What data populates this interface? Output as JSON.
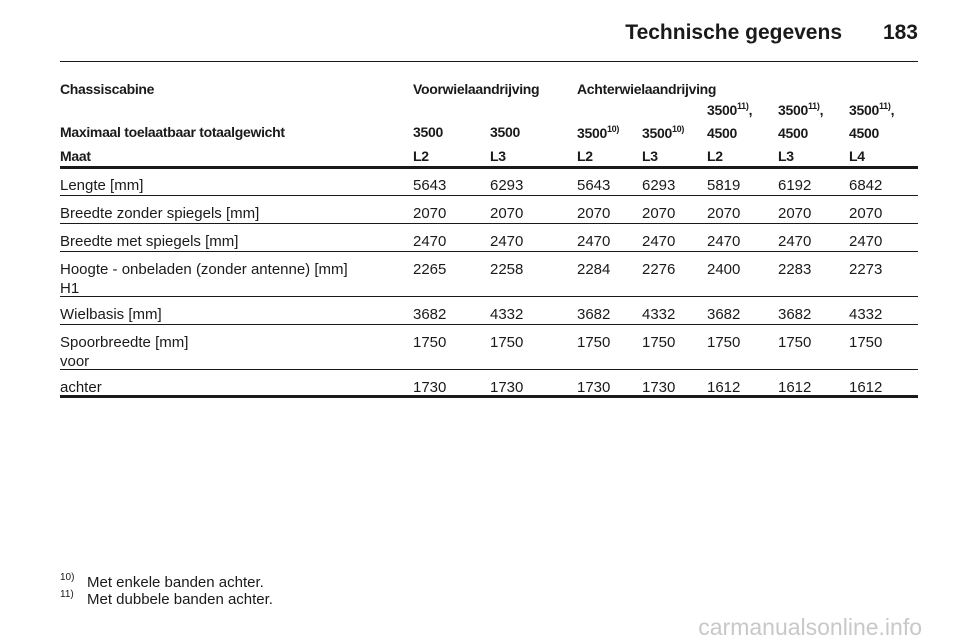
{
  "header": {
    "title": "Technische gegevens",
    "page_number": "183"
  },
  "table": {
    "group_headers": [
      "Chassiscabine",
      "Voorwielaandrijving",
      "Achterwielaandrijving"
    ],
    "weight_label": "Maximaal toelaatbaar totaalgewicht",
    "weights": [
      {
        "text": "3500"
      },
      {
        "text": "3500"
      },
      {
        "text": "3500",
        "note": "10)"
      },
      {
        "text": "3500",
        "note": "10)"
      },
      {
        "text": "3500",
        "note": "11)",
        "suffix": ",",
        "line2": "4500"
      },
      {
        "text": "3500",
        "note": "11)",
        "suffix": ",",
        "line2": "4500"
      },
      {
        "text": "3500",
        "note": "11)",
        "suffix": ",",
        "line2": "4500"
      }
    ],
    "size_label": "Maat",
    "sizes": [
      "L2",
      "L3",
      "L2",
      "L3",
      "L2",
      "L3",
      "L4"
    ],
    "rows": [
      {
        "label": [
          "Lengte [mm]"
        ],
        "values": [
          "5643",
          "6293",
          "5643",
          "6293",
          "5819",
          "6192",
          "6842"
        ]
      },
      {
        "label": [
          "Breedte zonder spiegels [mm]"
        ],
        "values": [
          "2070",
          "2070",
          "2070",
          "2070",
          "2070",
          "2070",
          "2070"
        ]
      },
      {
        "label": [
          "Breedte met spiegels [mm]"
        ],
        "values": [
          "2470",
          "2470",
          "2470",
          "2470",
          "2470",
          "2470",
          "2470"
        ]
      },
      {
        "label": [
          "Hoogte - onbeladen (zonder antenne) [mm]",
          "H1"
        ],
        "values": [
          "2265",
          "2258",
          "2284",
          "2276",
          "2400",
          "2283",
          "2273"
        ]
      },
      {
        "label": [
          "Wielbasis [mm]"
        ],
        "values": [
          "3682",
          "4332",
          "3682",
          "4332",
          "3682",
          "3682",
          "4332"
        ]
      },
      {
        "label": [
          "Spoorbreedte [mm]",
          "voor"
        ],
        "values": [
          "1750",
          "1750",
          "1750",
          "1750",
          "1750",
          "1750",
          "1750"
        ]
      },
      {
        "label": [
          "achter"
        ],
        "values": [
          "1730",
          "1730",
          "1730",
          "1730",
          "1612",
          "1612",
          "1612"
        ]
      }
    ]
  },
  "footnotes": [
    {
      "mark": "10)",
      "text": "Met enkele banden achter."
    },
    {
      "mark": "11)",
      "text": "Met dubbele banden achter."
    }
  ],
  "watermark": "carmanualsonline.info"
}
